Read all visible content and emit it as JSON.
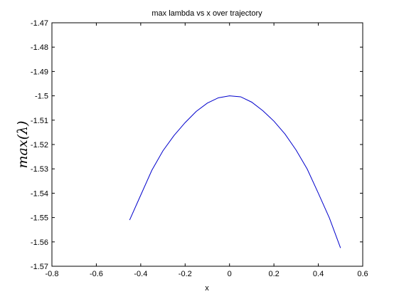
{
  "chart_data": {
    "type": "line",
    "title": "max lambda vs x over trajectory",
    "xlabel": "x",
    "ylabel": "max(λ)",
    "xlim": [
      -0.8,
      0.6
    ],
    "ylim": [
      -1.57,
      -1.47
    ],
    "xticks": [
      -0.8,
      -0.6,
      -0.4,
      -0.2,
      0,
      0.2,
      0.4,
      0.6
    ],
    "xtick_labels": [
      "-0.8",
      "-0.6",
      "-0.4",
      "-0.2",
      "0",
      "0.2",
      "0.4",
      "0.6"
    ],
    "yticks": [
      -1.47,
      -1.48,
      -1.49,
      -1.5,
      -1.51,
      -1.52,
      -1.53,
      -1.54,
      -1.55,
      -1.56,
      -1.57
    ],
    "ytick_labels": [
      "-1.47",
      "-1.48",
      "-1.49",
      "-1.5",
      "-1.51",
      "-1.52",
      "-1.53",
      "-1.54",
      "-1.55",
      "-1.56",
      "-1.57"
    ],
    "grid": false,
    "series": [
      {
        "color": "#0000cc",
        "x": [
          -0.45,
          -0.4,
          -0.35,
          -0.3,
          -0.25,
          -0.2,
          -0.15,
          -0.1,
          -0.05,
          0.0,
          0.05,
          0.1,
          0.15,
          0.2,
          0.25,
          0.3,
          0.35,
          0.4,
          0.45,
          0.5
        ],
        "y": [
          -1.551,
          -1.5408,
          -1.5306,
          -1.5226,
          -1.5163,
          -1.511,
          -1.5064,
          -1.503,
          -1.5008,
          -1.5,
          -1.5004,
          -1.5026,
          -1.5061,
          -1.5104,
          -1.5157,
          -1.5223,
          -1.5301,
          -1.54,
          -1.5502,
          -1.5625
        ]
      }
    ]
  }
}
